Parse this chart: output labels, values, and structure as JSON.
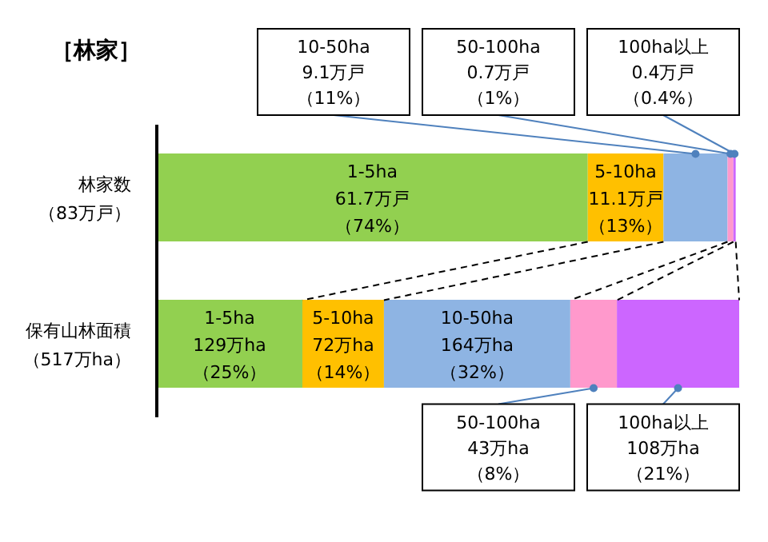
{
  "chart_data": {
    "type": "bar",
    "orientation": "horizontal",
    "stacked": true,
    "title": "［林家］",
    "categories": [
      "林家数（83万戸）",
      "保有山林面積（517万ha）"
    ],
    "series": [
      {
        "color": "#92d050",
        "values": [
          74,
          25
        ],
        "value_labels": [
          "1-5ha\n61.7万戸（74%）",
          "1-5ha\n129万ha（25%）"
        ]
      },
      {
        "color": "#ffc000",
        "values": [
          13,
          14
        ],
        "value_labels": [
          "5-10ha\n11.1万戸（13%）",
          "5-10ha\n72万ha（14%）"
        ]
      },
      {
        "color": "#8eb4e3",
        "values": [
          11,
          32
        ],
        "value_labels": [
          "10-50ha\n9.1万戸（11%）",
          "10-50ha\n164万ha（32%）"
        ]
      },
      {
        "color": "#ff99cc",
        "values": [
          1,
          8
        ],
        "value_labels": [
          "50-100ha\n0.7万戸（1%）",
          "50-100ha\n43万ha（8%）"
        ]
      },
      {
        "color": "#cc66ff",
        "values": [
          0.4,
          21
        ],
        "value_labels": [
          "100ha以上\n0.4万戸（0.4%）",
          "100ha以上\n108万ha（21%）"
        ]
      }
    ]
  }
}
